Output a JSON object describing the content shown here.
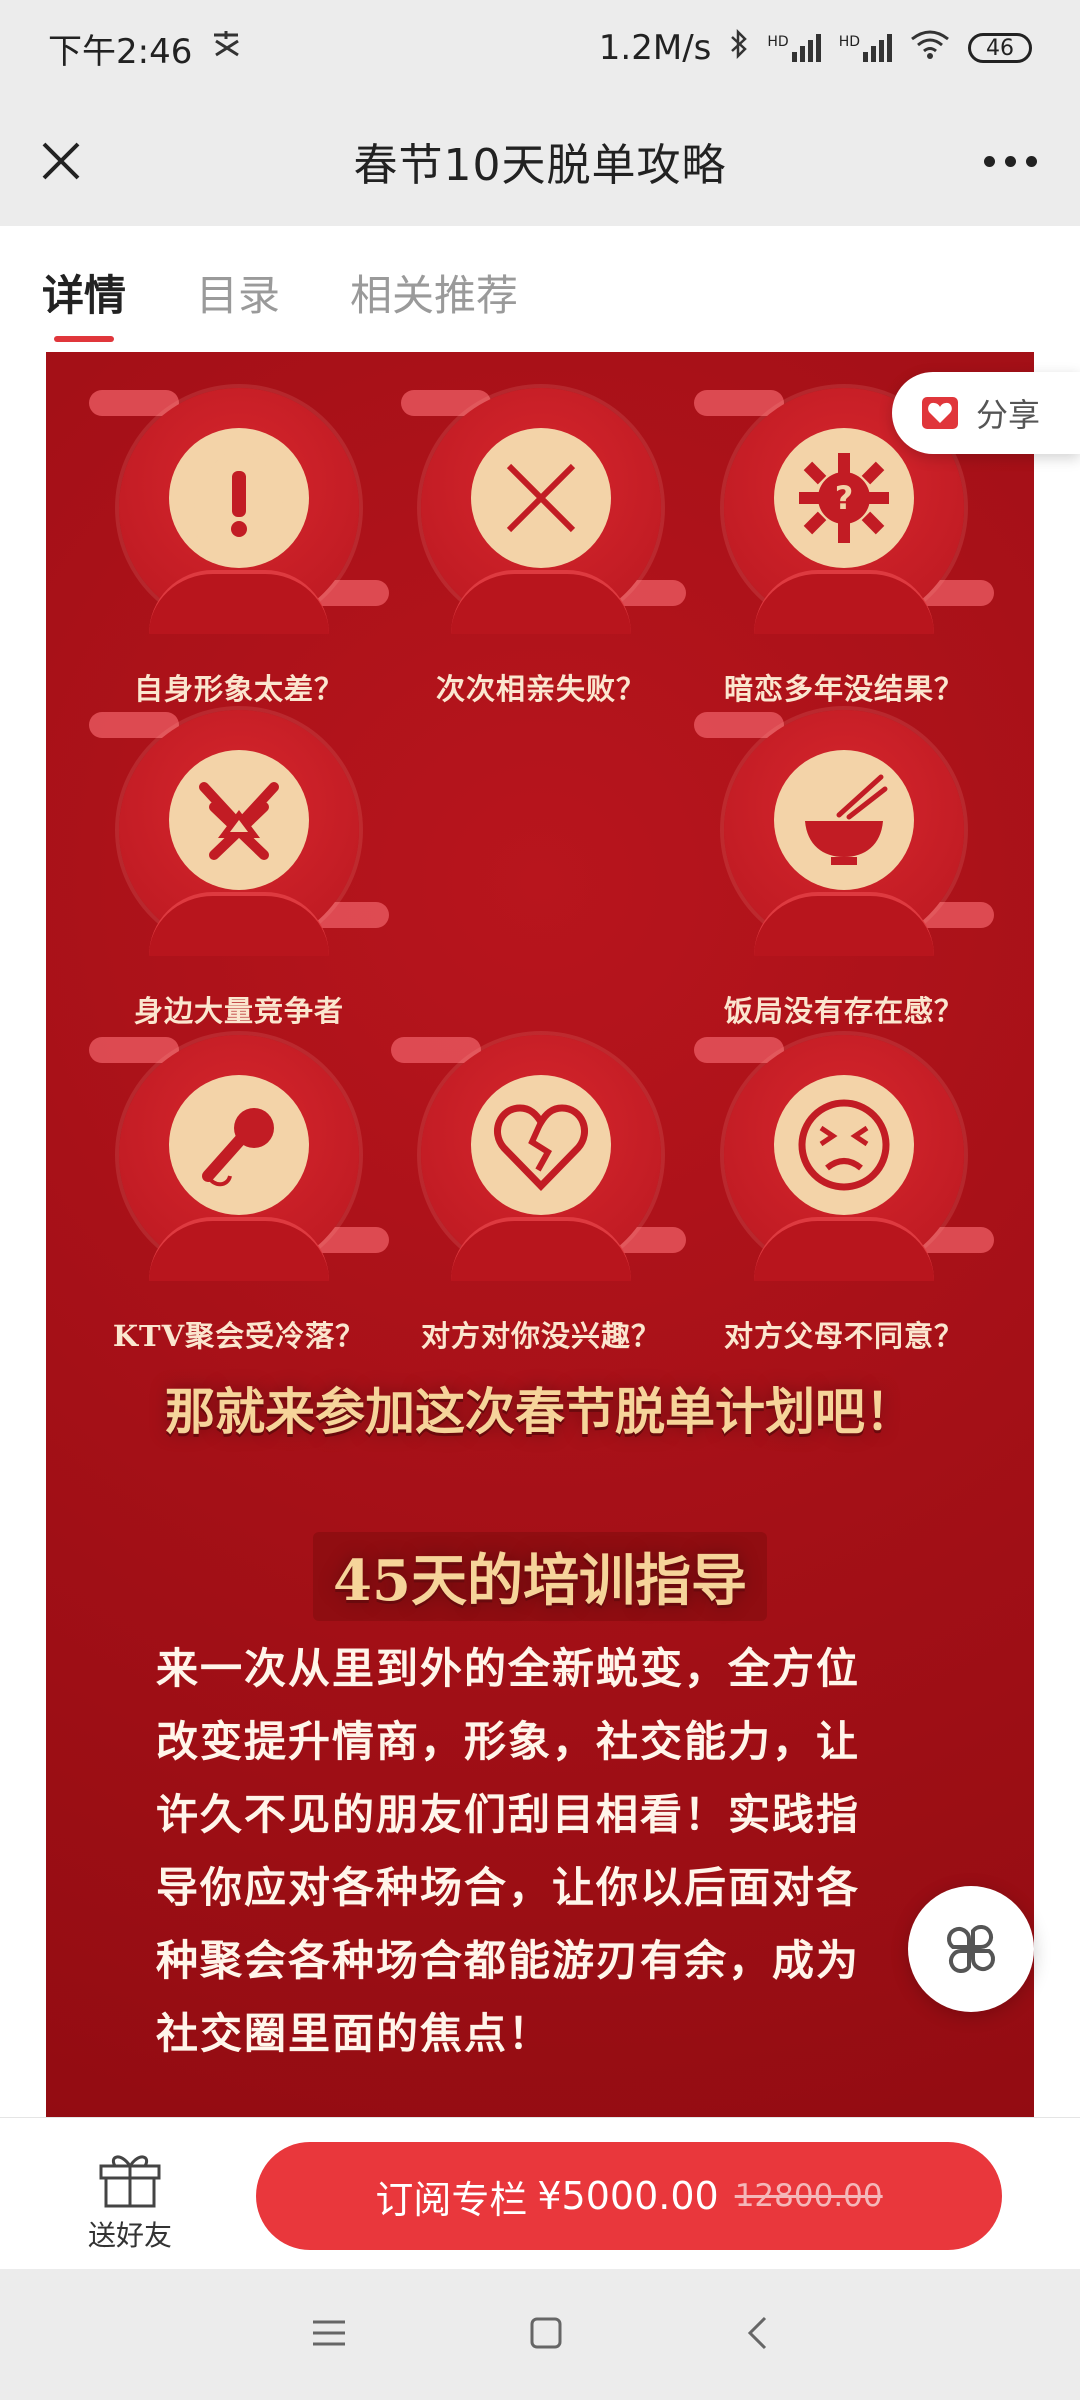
{
  "status_bar": {
    "time": "下午2:46",
    "network_speed": "1.2M/s",
    "signal_1": "HD",
    "signal_2": "HD",
    "battery": "46"
  },
  "title_bar": {
    "title": "春节10天脱单攻略"
  },
  "tabs": [
    {
      "label": "详情",
      "active": true
    },
    {
      "label": "目录",
      "active": false
    },
    {
      "label": "相关推荐",
      "active": false
    }
  ],
  "share": {
    "label": "分享"
  },
  "poster": {
    "problems": [
      {
        "label": "自身形象太差？",
        "icon": "exclamation-icon"
      },
      {
        "label": "次次相亲失败？",
        "icon": "cross-icon"
      },
      {
        "label": "暗恋多年没结果？",
        "icon": "question-gear-icon"
      },
      {
        "label": "身边大量竞争者",
        "icon": "rival-icon"
      },
      {
        "label": "饭局没有存在感？",
        "icon": "rice-bowl-icon"
      },
      {
        "label": "KTV聚会受冷落？",
        "icon": "microphone-icon"
      },
      {
        "label": "对方对你没兴趣？",
        "icon": "broken-heart-icon"
      },
      {
        "label": "对方父母不同意？",
        "icon": "frown-face-icon"
      }
    ],
    "headline": "那就来参加这次春节脱单计划吧！",
    "subheadline": "45天的培训指导",
    "body_lines": [
      "来一次从里到外的全新蜕变，全方位",
      "改变提升情商，形象，社交能力，让",
      "许久不见的朋友们刮目相看！实践指",
      "导你应对各种场合，让你以后面对各",
      "种聚会各种场合都能游刃有余，成为",
      "社交圈里面的焦点！"
    ]
  },
  "bottom_bar": {
    "gift_label": "送好友",
    "subscribe_label": "订阅专栏",
    "price": "¥5000.00",
    "original_price": "12800.00"
  },
  "colors": {
    "accent": "#e9373c",
    "poster_red": "#a8121a",
    "icon_cream": "#f3d3a8"
  }
}
